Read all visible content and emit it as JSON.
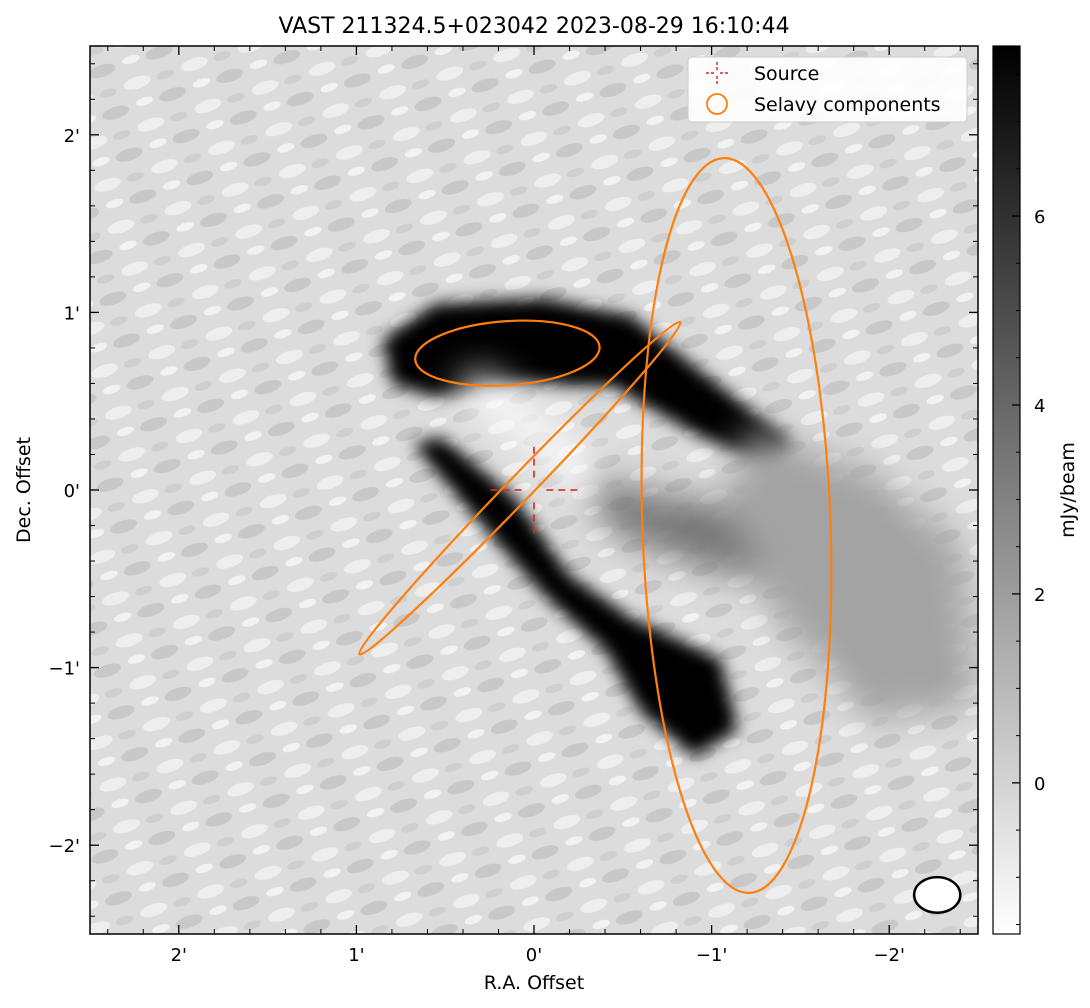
{
  "chart_data": {
    "type": "heatmap",
    "title": "VAST 211324.5+023042 2023-08-29 16:10:44",
    "xlabel": "R.A. Offset",
    "ylabel": "Dec. Offset",
    "colorbar_label": "mJy/beam",
    "colormap": "gray_r",
    "xlim": [
      2.5,
      -2.5
    ],
    "ylim": [
      -2.5,
      2.5
    ],
    "x_ticks": [
      {
        "value": 2,
        "label": "2'"
      },
      {
        "value": 1,
        "label": "1'"
      },
      {
        "value": 0,
        "label": "0'"
      },
      {
        "value": -1,
        "label": "−1'"
      },
      {
        "value": -2,
        "label": "−2'"
      }
    ],
    "y_ticks": [
      {
        "value": 2,
        "label": "2'"
      },
      {
        "value": 1,
        "label": "1'"
      },
      {
        "value": 0,
        "label": "0'"
      },
      {
        "value": -1,
        "label": "−1'"
      },
      {
        "value": -2,
        "label": "−2'"
      }
    ],
    "colorbar_range": [
      -1.6,
      7.8
    ],
    "colorbar_ticks": [
      {
        "value": 0,
        "label": "0"
      },
      {
        "value": 2,
        "label": "2"
      },
      {
        "value": 4,
        "label": "4"
      },
      {
        "value": 6,
        "label": "6"
      }
    ],
    "legend": {
      "position": "upper right",
      "entries": [
        {
          "label": "Source",
          "marker": "dashed crosshair",
          "color": "#d62728"
        },
        {
          "label": "Selavy components",
          "marker": "open circle",
          "color": "#ff7f0e"
        }
      ]
    },
    "source_marker": {
      "x": 0,
      "y": 0,
      "color": "#d62728"
    },
    "components": [
      {
        "x": 0.15,
        "y": 0.77,
        "semi_major": 0.52,
        "semi_minor": 0.18,
        "angle_deg": -4
      },
      {
        "x": 0.08,
        "y": 0.01,
        "semi_major": 1.3,
        "semi_minor": 0.07,
        "angle_deg": -46
      },
      {
        "x": -1.14,
        "y": -0.2,
        "semi_major": 2.07,
        "semi_minor": 0.53,
        "angle_deg": 88
      }
    ],
    "component_color": "#ff7f0e",
    "beam": {
      "x": -2.27,
      "y": -2.28,
      "semi_major": 0.13,
      "semi_minor": 0.1,
      "angle_deg": 0
    },
    "emission": [
      {
        "points": [
          [
            0.85,
            0.85
          ],
          [
            0.55,
            1.05
          ],
          [
            -0.05,
            1.08
          ],
          [
            -0.55,
            0.98
          ],
          [
            -1.0,
            0.62
          ],
          [
            -1.45,
            0.28
          ],
          [
            -1.35,
            0.12
          ],
          [
            -0.9,
            0.32
          ],
          [
            -0.45,
            0.58
          ],
          [
            0.1,
            0.6
          ],
          [
            0.55,
            0.52
          ],
          [
            0.8,
            0.6
          ]
        ],
        "value": 8
      },
      {
        "points": [
          [
            0.52,
            0.3
          ],
          [
            0.1,
            -0.05
          ],
          [
            -0.2,
            -0.48
          ],
          [
            -0.55,
            -0.72
          ],
          [
            -1.05,
            -0.95
          ],
          [
            -1.15,
            -1.35
          ],
          [
            -0.9,
            -1.5
          ],
          [
            -0.6,
            -1.25
          ],
          [
            -0.4,
            -0.9
          ],
          [
            -0.08,
            -0.62
          ],
          [
            0.38,
            -0.1
          ],
          [
            0.68,
            0.26
          ]
        ],
        "value": 8
      },
      {
        "points": [
          [
            -0.3,
            0.08
          ],
          [
            -0.8,
            -0.05
          ],
          [
            -1.35,
            -0.1
          ],
          [
            -1.6,
            -0.35
          ],
          [
            -1.2,
            -0.5
          ],
          [
            -0.7,
            -0.35
          ],
          [
            -0.4,
            -0.2
          ]
        ],
        "value": 3.5
      },
      {
        "points": [
          [
            -1.2,
            0.35
          ],
          [
            -1.9,
            0.1
          ],
          [
            -2.4,
            -0.3
          ],
          [
            -2.5,
            -1.2
          ],
          [
            -1.9,
            -1.3
          ],
          [
            -1.35,
            -0.7
          ],
          [
            -1.1,
            -0.1
          ]
        ],
        "value": 1.8
      },
      {
        "points": [
          [
            0.45,
            0.55
          ],
          [
            0.1,
            0.3
          ],
          [
            -0.25,
            -0.05
          ],
          [
            -0.35,
            0.15
          ],
          [
            0.0,
            0.45
          ],
          [
            0.3,
            0.68
          ]
        ],
        "value": -1.4
      }
    ]
  }
}
